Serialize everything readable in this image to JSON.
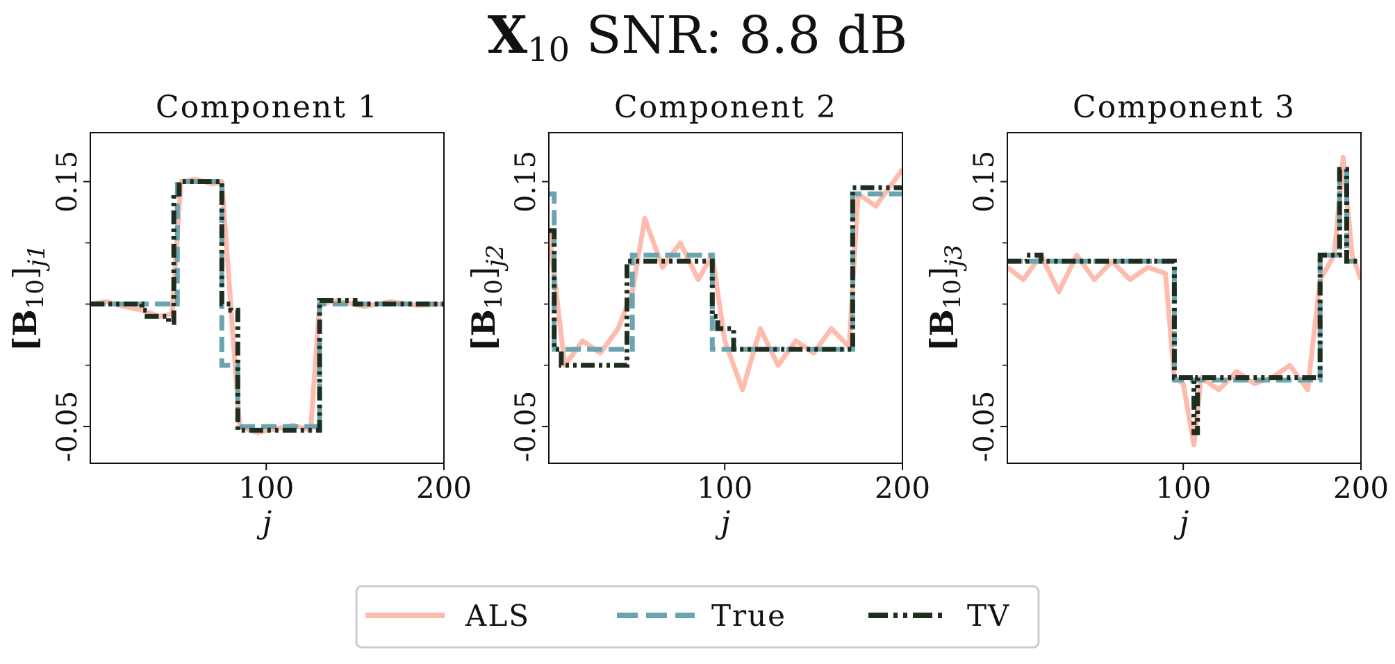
{
  "figure": {
    "title_main": "X",
    "title_sub": "10",
    "title_rest": " SNR: 8.8 dB"
  },
  "legend": {
    "position": "bottom-center",
    "items": [
      {
        "label": "ALS",
        "color": "#fdbcae",
        "style": "solid"
      },
      {
        "label": "True",
        "color": "#6aa4ae",
        "style": "dashed"
      },
      {
        "label": "TV",
        "color": "#1f2d1f",
        "style": "dash-dot-dot"
      }
    ]
  },
  "colors": {
    "als": "#fdbcae",
    "true": "#6aa4ae",
    "tv": "#1f2d1f",
    "axes": "#111111"
  },
  "chart_data": [
    {
      "type": "line",
      "title": "Component 1",
      "xlabel": "j",
      "ylabel_main": "[B",
      "ylabel_sub": "10",
      "ylabel_close": "]",
      "ylabel_index": "j1",
      "xlim": [
        1,
        200
      ],
      "ylim": [
        -0.08,
        0.19
      ],
      "xticks": [
        100,
        200
      ],
      "xtick_labels": [
        "100",
        "200"
      ],
      "yticks": [
        -0.05,
        0.15
      ],
      "ytick_labels": [
        "-0.05",
        "0.15"
      ],
      "minor_yticks": [
        0.0,
        0.05,
        0.1
      ],
      "grid": false,
      "segments_true": [
        [
          1,
          50,
          0.05
        ],
        [
          50,
          75,
          0.15
        ],
        [
          75,
          84,
          0.0
        ],
        [
          84,
          130,
          -0.05
        ],
        [
          130,
          200,
          0.05
        ]
      ],
      "segments_tv": [
        [
          1,
          30,
          0.05
        ],
        [
          30,
          33,
          0.045
        ],
        [
          33,
          45,
          0.04
        ],
        [
          45,
          48,
          0.035
        ],
        [
          48,
          51,
          0.14
        ],
        [
          51,
          75,
          0.15
        ],
        [
          75,
          80,
          0.05
        ],
        [
          80,
          84,
          0.045
        ],
        [
          84,
          130,
          -0.053
        ],
        [
          130,
          150,
          0.053
        ],
        [
          150,
          200,
          0.05
        ]
      ],
      "series": [
        {
          "name": "ALS",
          "x": [
            1,
            10,
            20,
            30,
            40,
            47,
            52,
            60,
            70,
            75,
            80,
            85,
            95,
            105,
            115,
            125,
            130,
            140,
            155,
            170,
            185,
            200
          ],
          "values": [
            0.05,
            0.052,
            0.048,
            0.045,
            0.04,
            0.042,
            0.15,
            0.152,
            0.148,
            0.15,
            0.05,
            -0.05,
            -0.055,
            -0.052,
            -0.049,
            -0.053,
            0.05,
            0.053,
            0.048,
            0.052,
            0.049,
            0.05
          ]
        }
      ]
    },
    {
      "type": "line",
      "title": "Component 2",
      "xlabel": "j",
      "ylabel_main": "[B",
      "ylabel_sub": "10",
      "ylabel_close": "]",
      "ylabel_index": "j2",
      "xlim": [
        1,
        200
      ],
      "ylim": [
        -0.08,
        0.19
      ],
      "xticks": [
        100,
        200
      ],
      "xtick_labels": [
        "100",
        "200"
      ],
      "yticks": [
        -0.05,
        0.15
      ],
      "ytick_labels": [
        "-0.05",
        "0.15"
      ],
      "minor_yticks": [
        0.0,
        0.05,
        0.1
      ],
      "grid": false,
      "segments_true": [
        [
          1,
          4,
          0.14
        ],
        [
          4,
          48,
          0.013
        ],
        [
          48,
          93,
          0.09
        ],
        [
          93,
          172,
          0.013
        ],
        [
          172,
          200,
          0.14
        ]
      ],
      "segments_tv": [
        [
          1,
          4,
          0.11
        ],
        [
          4,
          8,
          0.013
        ],
        [
          8,
          45,
          0.0
        ],
        [
          45,
          50,
          0.085
        ],
        [
          50,
          93,
          0.085
        ],
        [
          93,
          96,
          0.04
        ],
        [
          96,
          105,
          0.03
        ],
        [
          105,
          172,
          0.013
        ],
        [
          172,
          200,
          0.145
        ]
      ],
      "series": [
        {
          "name": "ALS",
          "x": [
            1,
            10,
            20,
            30,
            40,
            48,
            55,
            65,
            75,
            85,
            93,
            100,
            110,
            120,
            130,
            140,
            150,
            160,
            170,
            175,
            185,
            200
          ],
          "values": [
            0.11,
            0.0,
            0.02,
            0.01,
            0.03,
            0.06,
            0.12,
            0.08,
            0.1,
            0.07,
            0.09,
            0.02,
            -0.02,
            0.03,
            0.0,
            0.02,
            0.01,
            0.03,
            0.015,
            0.14,
            0.13,
            0.16
          ]
        }
      ]
    },
    {
      "type": "line",
      "title": "Component 3",
      "xlabel": "j",
      "ylabel_main": "[B",
      "ylabel_sub": "10",
      "ylabel_close": "]",
      "ylabel_index": "j3",
      "xlim": [
        1,
        200
      ],
      "ylim": [
        -0.08,
        0.19
      ],
      "xticks": [
        100,
        200
      ],
      "xtick_labels": [
        "100",
        "200"
      ],
      "yticks": [
        -0.05,
        0.15
      ],
      "ytick_labels": [
        "-0.05",
        "0.15"
      ],
      "minor_yticks": [
        0.0,
        0.05,
        0.1
      ],
      "grid": false,
      "segments_true": [
        [
          1,
          95,
          0.085
        ],
        [
          95,
          177,
          -0.012
        ],
        [
          177,
          188,
          0.09
        ],
        [
          188,
          192,
          0.16
        ],
        [
          192,
          200,
          0.085
        ]
      ],
      "segments_tv": [
        [
          1,
          12,
          0.085
        ],
        [
          12,
          20,
          0.09
        ],
        [
          20,
          95,
          0.085
        ],
        [
          95,
          106,
          -0.01
        ],
        [
          106,
          108,
          -0.055
        ],
        [
          108,
          177,
          -0.01
        ],
        [
          177,
          188,
          0.09
        ],
        [
          188,
          192,
          0.16
        ],
        [
          192,
          200,
          0.085
        ]
      ],
      "series": [
        {
          "name": "ALS",
          "x": [
            1,
            10,
            20,
            30,
            40,
            50,
            60,
            70,
            80,
            90,
            95,
            100,
            106,
            110,
            120,
            130,
            140,
            150,
            160,
            170,
            177,
            185,
            190,
            195,
            200
          ],
          "values": [
            0.08,
            0.07,
            0.09,
            0.06,
            0.09,
            0.07,
            0.085,
            0.07,
            0.08,
            0.075,
            -0.01,
            -0.015,
            -0.065,
            -0.01,
            -0.02,
            -0.005,
            -0.015,
            -0.01,
            0.0,
            -0.02,
            0.07,
            0.09,
            0.17,
            0.09,
            0.07
          ]
        }
      ]
    }
  ]
}
